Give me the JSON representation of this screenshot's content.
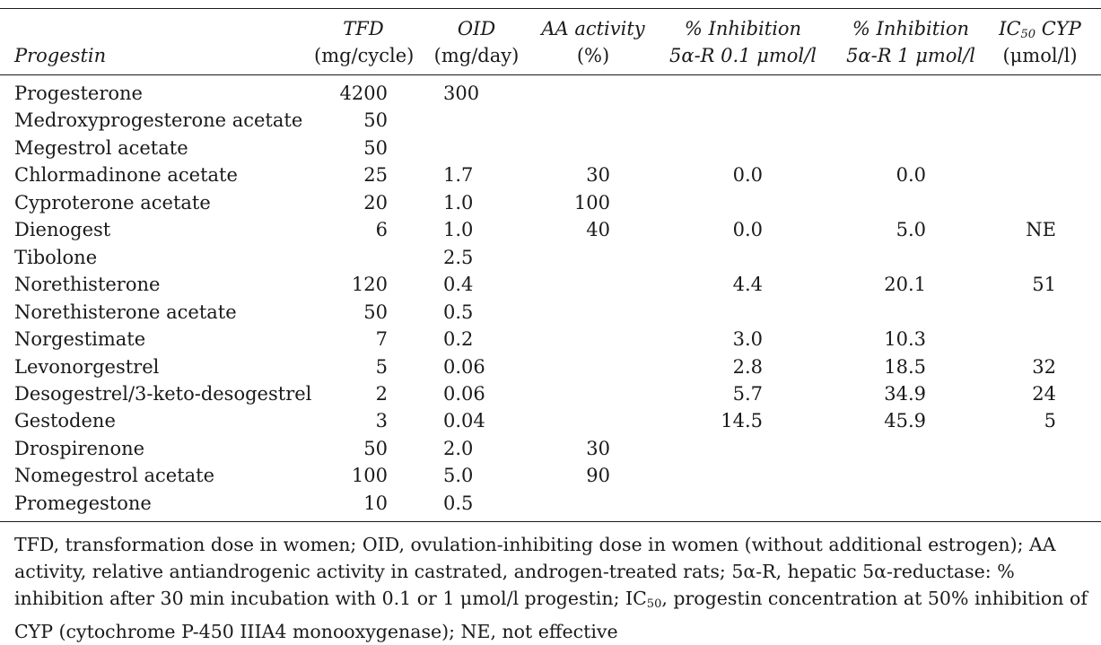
{
  "headers": {
    "progestin": "Progestin",
    "tfd_line1": "TFD",
    "tfd_line2": "(mg/cycle)",
    "oid_line1": "OID",
    "oid_line2": "(mg/day)",
    "aa_line1": "AA activity",
    "aa_line2": "(%)",
    "inh01_line1": "% Inhibition",
    "inh01_line2": "5α-R 0.1 μmol/l",
    "inh1_line1": "% Inhibition",
    "inh1_line2": "5α-R 1 μmol/l",
    "ic50_prefix": "IC",
    "ic50_sub": "50",
    "ic50_suffix": " CYP",
    "ic50_line2": "(μmol/l)"
  },
  "rows": [
    {
      "name": "Progesterone",
      "tfd": "4200",
      "oid": "300",
      "aa": "",
      "inh01": "",
      "inh1": "",
      "ic50": ""
    },
    {
      "name": "Medroxyprogesterone acetate",
      "tfd": "50",
      "oid": "",
      "aa": "",
      "inh01": "",
      "inh1": "",
      "ic50": ""
    },
    {
      "name": "Megestrol acetate",
      "tfd": "50",
      "oid": "",
      "aa": "",
      "inh01": "",
      "inh1": "",
      "ic50": ""
    },
    {
      "name": "Chlormadinone acetate",
      "tfd": "25",
      "oid": "1.7",
      "aa": "30",
      "inh01": "0.0",
      "inh1": "0.0",
      "ic50": ""
    },
    {
      "name": "Cyproterone acetate",
      "tfd": "20",
      "oid": "1.0",
      "aa": "100",
      "inh01": "",
      "inh1": "",
      "ic50": ""
    },
    {
      "name": "Dienogest",
      "tfd": "6",
      "oid": "1.0",
      "aa": "40",
      "inh01": "0.0",
      "inh1": "5.0",
      "ic50": "NE"
    },
    {
      "name": "Tibolone",
      "tfd": "",
      "oid": "2.5",
      "aa": "",
      "inh01": "",
      "inh1": "",
      "ic50": ""
    },
    {
      "name": "Norethisterone",
      "tfd": "120",
      "oid": "0.4",
      "aa": "",
      "inh01": "4.4",
      "inh1": "20.1",
      "ic50": "51"
    },
    {
      "name": "Norethisterone acetate",
      "tfd": "50",
      "oid": "0.5",
      "aa": "",
      "inh01": "",
      "inh1": "",
      "ic50": ""
    },
    {
      "name": "Norgestimate",
      "tfd": "7",
      "oid": "0.2",
      "aa": "",
      "inh01": "3.0",
      "inh1": "10.3",
      "ic50": ""
    },
    {
      "name": "Levonorgestrel",
      "tfd": "5",
      "oid": "0.06",
      "aa": "",
      "inh01": "2.8",
      "inh1": "18.5",
      "ic50": "32"
    },
    {
      "name": "Desogestrel/3-keto-desogestrel",
      "tfd": "2",
      "oid": "0.06",
      "aa": "",
      "inh01": "5.7",
      "inh1": "34.9",
      "ic50": "24"
    },
    {
      "name": "Gestodene",
      "tfd": "3",
      "oid": "0.04",
      "aa": "",
      "inh01": "14.5",
      "inh1": "45.9",
      "ic50": "5"
    },
    {
      "name": "Drospirenone",
      "tfd": "50",
      "oid": "2.0",
      "aa": "30",
      "inh01": "",
      "inh1": "",
      "ic50": ""
    },
    {
      "name": "Nomegestrol acetate",
      "tfd": "100",
      "oid": "5.0",
      "aa": "90",
      "inh01": "",
      "inh1": "",
      "ic50": ""
    },
    {
      "name": "Promegestone",
      "tfd": "10",
      "oid": "0.5",
      "aa": "",
      "inh01": "",
      "inh1": "",
      "ic50": ""
    }
  ],
  "footnote": {
    "part1": "TFD, transformation dose in women; OID, ovulation-inhibiting dose in women (without additional estrogen); AA activity, relative antiandrogenic activity in castrated, androgen-treated rats; 5α-R, hepatic 5α-reductase: % inhibition after 30 min incubation with 0.1 or 1 μmol/l progestin; IC",
    "sub": "50",
    "part2": ", progestin concentration at 50% inhibition of CYP (cytochrome P-450 IIIA4 monooxygenase); NE, not effective"
  }
}
